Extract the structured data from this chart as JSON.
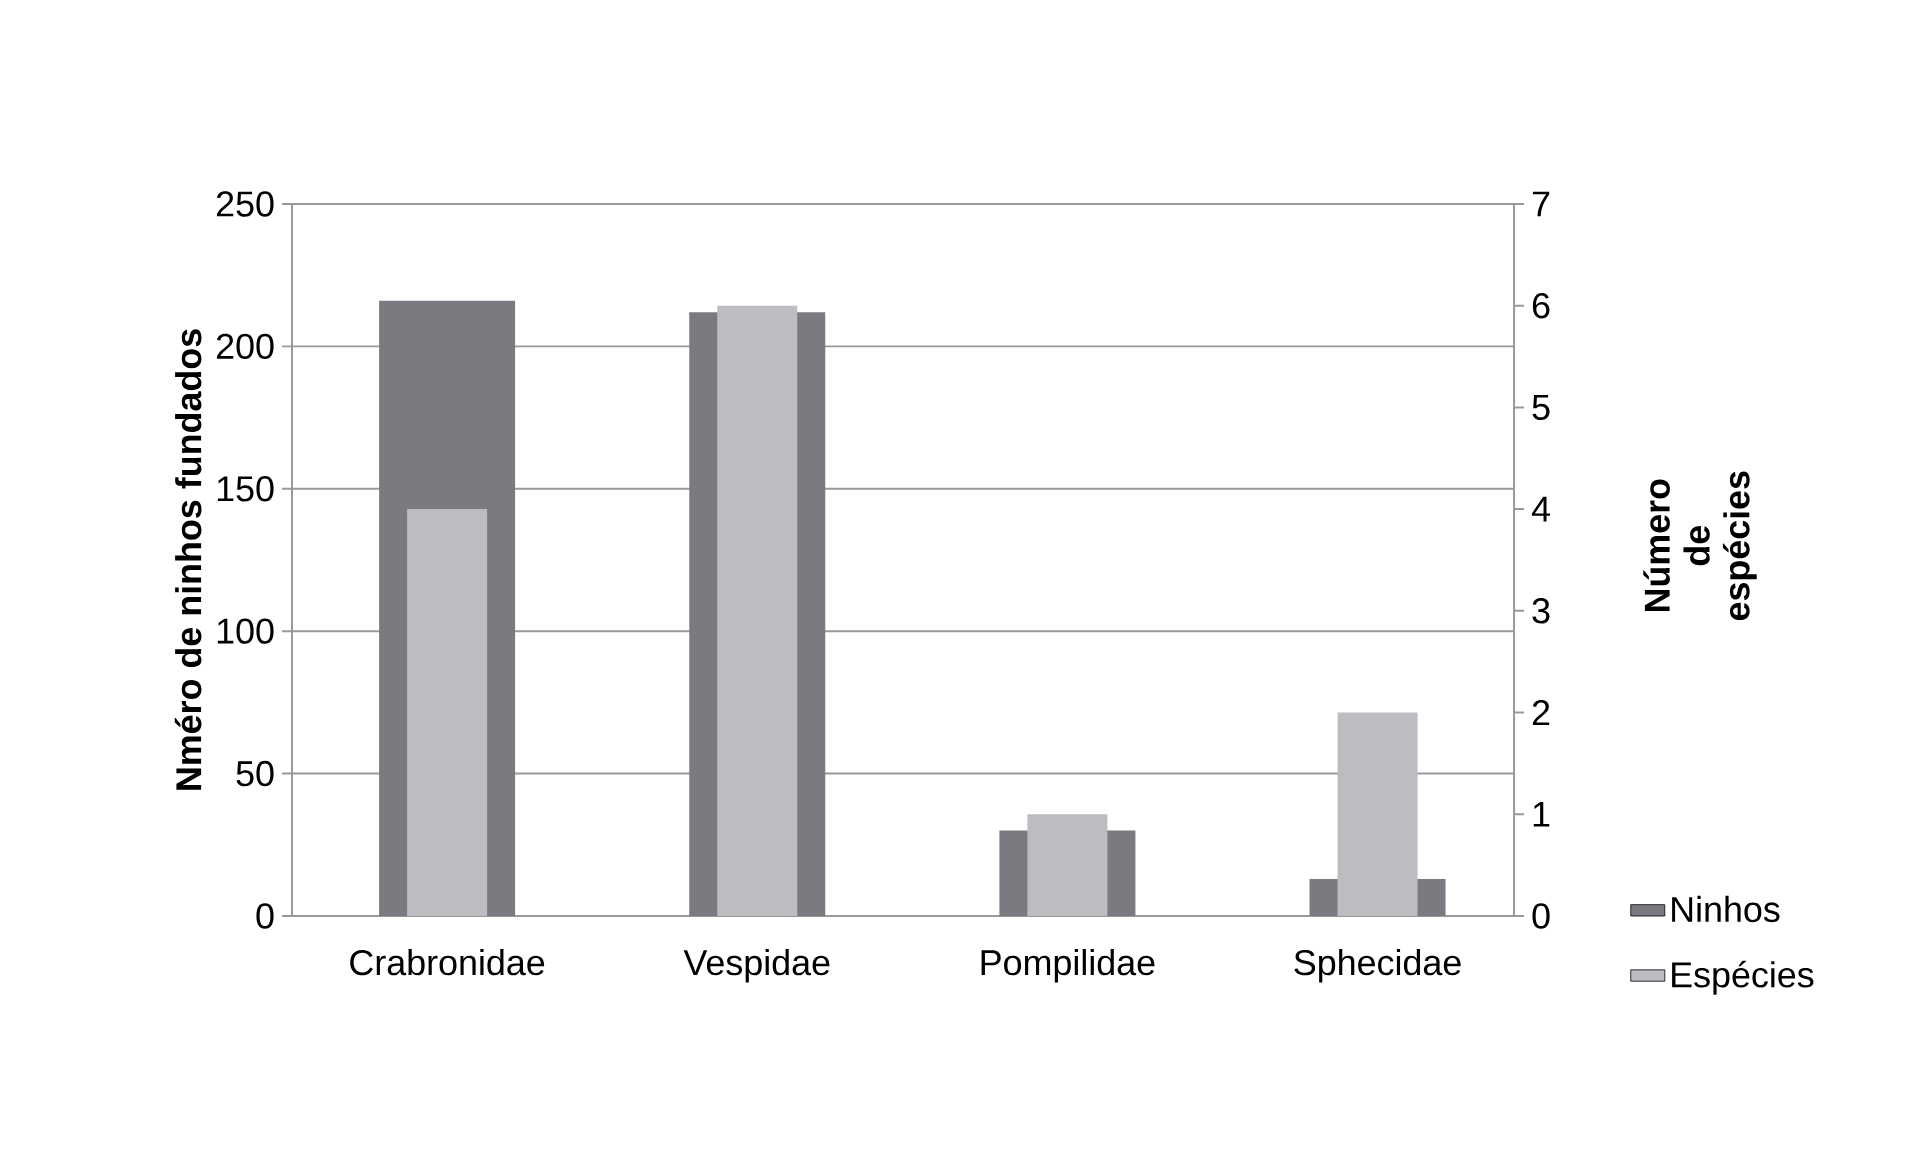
{
  "chart_data": {
    "type": "bar",
    "categories": [
      "Crabronidae",
      "Vespidae",
      "Pompilidae",
      "Sphecidae"
    ],
    "series": [
      {
        "name": "Ninhos",
        "color": "#7a7b80",
        "values": [
          216,
          212,
          30,
          13
        ]
      },
      {
        "name": "Espécies",
        "color": "#bcbdc1",
        "values": [
          4,
          6,
          1,
          2
        ],
        "axis": "y2"
      }
    ],
    "ylabel": "Nméro de ninhos fundados",
    "y2label": "Número de espécies",
    "ylim": [
      0,
      250
    ],
    "yticks": [
      0,
      50,
      100,
      150,
      200,
      250
    ],
    "y2lim": [
      0,
      7
    ],
    "y2ticks": [
      0,
      1,
      2,
      3,
      4,
      5,
      6,
      7
    ],
    "grid": "y",
    "legend": "bottom right"
  }
}
